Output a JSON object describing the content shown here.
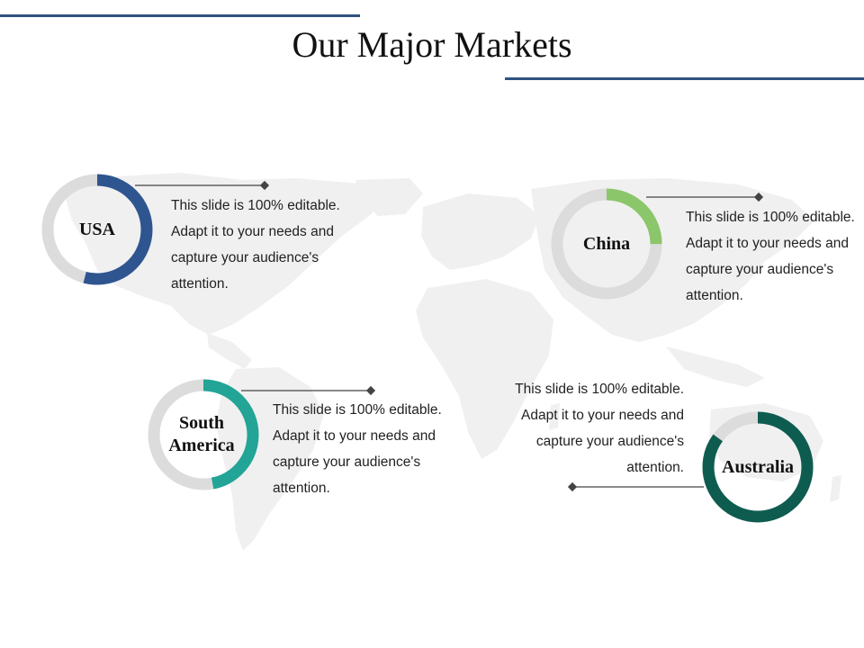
{
  "title": "Our Major Markets",
  "colors": {
    "accent_rule": "#2f527f",
    "track": "#dcdcdc",
    "map": "#f0f0f0"
  },
  "markets": [
    {
      "name": "USA",
      "name_lines": [
        "USA"
      ],
      "share": 0.54,
      "color": "#2f5590",
      "description_lines": [
        "This slide is 100% editable.",
        "Adapt it to your needs and",
        "capture your audience's",
        "attention."
      ]
    },
    {
      "name": "China",
      "name_lines": [
        "China"
      ],
      "share": 0.25,
      "color": "#8cc66b",
      "description_lines": [
        "This slide is 100% editable.",
        "Adapt it to your needs and",
        "capture your audience's",
        "attention."
      ]
    },
    {
      "name": "South America",
      "name_lines": [
        "South",
        "America"
      ],
      "share": 0.47,
      "color": "#22a497",
      "description_lines": [
        "This slide is 100% editable.",
        "Adapt it to your needs and",
        "capture your audience's",
        "attention."
      ]
    },
    {
      "name": "Australia",
      "name_lines": [
        "Australia"
      ],
      "share": 0.85,
      "color": "#0e5c50",
      "description_lines": [
        "This slide is 100% editable.",
        "Adapt it to your needs and",
        "capture your audience's",
        "attention."
      ]
    }
  ]
}
